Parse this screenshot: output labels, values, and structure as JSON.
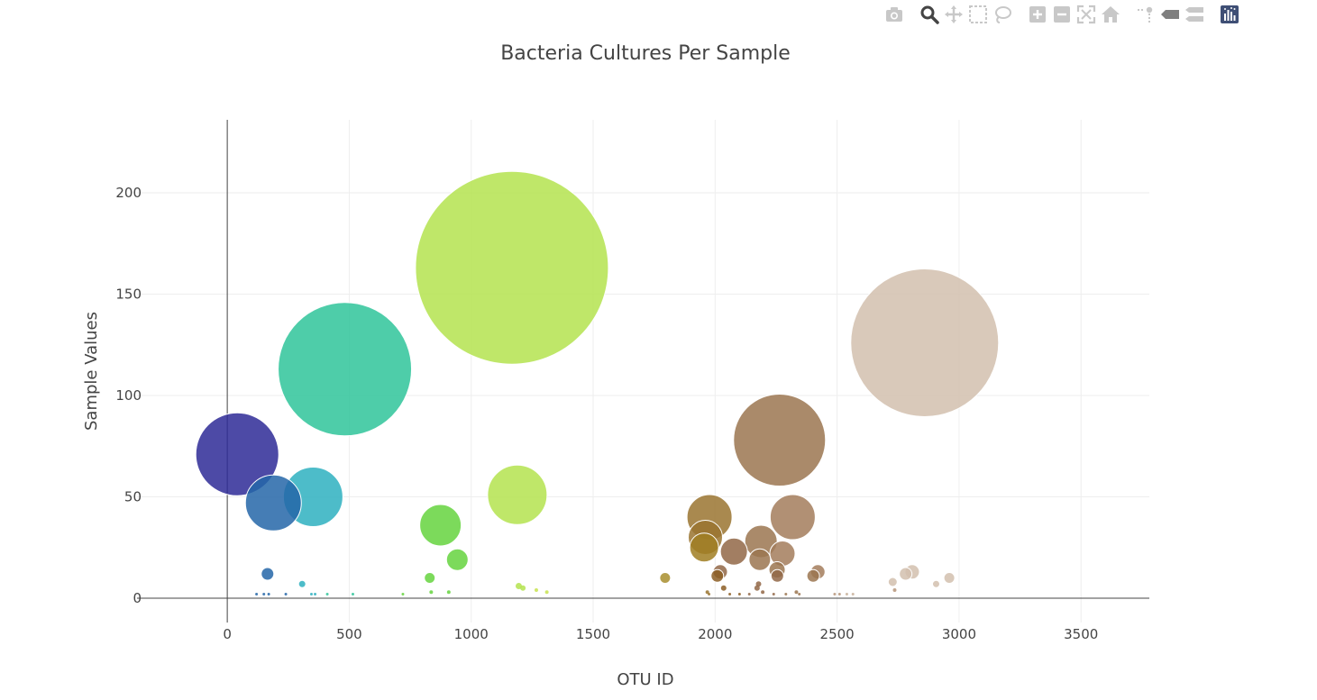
{
  "toolbar": {
    "buttons": [
      "camera-icon",
      "zoom-icon",
      "pan-icon",
      "box-select-icon",
      "lasso-icon",
      "zoom-in-icon",
      "zoom-out-icon",
      "autoscale-icon",
      "reset-axes-icon",
      "spike-lines-icon",
      "hover-closest-icon",
      "hover-compare-icon",
      "plotly-logo-icon"
    ]
  },
  "colors": {
    "grid": "#eeeeee",
    "zeroline": "#444444",
    "title": "#444444",
    "bubble_outline": "#ffffff"
  },
  "chart_data": {
    "type": "scatter",
    "title": "Bacteria Cultures Per Sample",
    "xlabel": "OTU ID",
    "ylabel": "Sample Values",
    "xlim": [
      -370,
      3780
    ],
    "ylim": [
      -12,
      236
    ],
    "xticks": [
      0,
      500,
      1000,
      1500,
      2000,
      2500,
      3000,
      3500
    ],
    "yticks": [
      0,
      50,
      100,
      150,
      200
    ],
    "grid": true,
    "legend": "none",
    "points": [
      {
        "x": 41,
        "y": 71,
        "r": 46,
        "color": "#2e2a96"
      },
      {
        "x": 189,
        "y": 47,
        "r": 31,
        "color": "#2566a8"
      },
      {
        "x": 352,
        "y": 50,
        "r": 33,
        "color": "#2eb0c0"
      },
      {
        "x": 482,
        "y": 113,
        "r": 74,
        "color": "#2fc49a"
      },
      {
        "x": 1167,
        "y": 163,
        "r": 107,
        "color": "#b4e34f"
      },
      {
        "x": 1189,
        "y": 51,
        "r": 33,
        "color": "#b4e34f"
      },
      {
        "x": 874,
        "y": 36,
        "r": 23,
        "color": "#65d43e"
      },
      {
        "x": 943,
        "y": 19,
        "r": 12,
        "color": "#65d43e"
      },
      {
        "x": 830,
        "y": 10,
        "r": 6,
        "color": "#65d43e"
      },
      {
        "x": 165,
        "y": 12,
        "r": 7,
        "color": "#2566a8"
      },
      {
        "x": 307,
        "y": 7,
        "r": 4,
        "color": "#2eb0c0"
      },
      {
        "x": 1795,
        "y": 10,
        "r": 6,
        "color": "#a88e2e"
      },
      {
        "x": 1977,
        "y": 40,
        "r": 25,
        "color": "#9a7430"
      },
      {
        "x": 1960,
        "y": 30,
        "r": 19,
        "color": "#9a7430"
      },
      {
        "x": 1955,
        "y": 25,
        "r": 16,
        "color": "#a07e22"
      },
      {
        "x": 2264,
        "y": 78,
        "r": 51,
        "color": "#9b7550"
      },
      {
        "x": 2318,
        "y": 40,
        "r": 25,
        "color": "#a37d5c"
      },
      {
        "x": 2188,
        "y": 28,
        "r": 18,
        "color": "#9b7550"
      },
      {
        "x": 2077,
        "y": 23,
        "r": 15,
        "color": "#926746"
      },
      {
        "x": 2276,
        "y": 22,
        "r": 14,
        "color": "#a37d5c"
      },
      {
        "x": 2183,
        "y": 19,
        "r": 12,
        "color": "#9b7550"
      },
      {
        "x": 2254,
        "y": 14,
        "r": 9,
        "color": "#9b7550"
      },
      {
        "x": 2255,
        "y": 11,
        "r": 7,
        "color": "#926746"
      },
      {
        "x": 2021,
        "y": 13,
        "r": 8,
        "color": "#926746"
      },
      {
        "x": 2009,
        "y": 11,
        "r": 7,
        "color": "#8c5e24"
      },
      {
        "x": 2421,
        "y": 13,
        "r": 8,
        "color": "#a37d5c"
      },
      {
        "x": 2402,
        "y": 11,
        "r": 7,
        "color": "#9b7550"
      },
      {
        "x": 2035,
        "y": 5,
        "r": 3,
        "color": "#8c5e24"
      },
      {
        "x": 2178,
        "y": 7,
        "r": 3,
        "color": "#926746"
      },
      {
        "x": 2172,
        "y": 5,
        "r": 3,
        "color": "#926746"
      },
      {
        "x": 2859,
        "y": 126,
        "r": 82,
        "color": "#d2bfae"
      },
      {
        "x": 2808,
        "y": 13,
        "r": 8,
        "color": "#d2bfae"
      },
      {
        "x": 2781,
        "y": 12,
        "r": 7,
        "color": "#d2bfae"
      },
      {
        "x": 2960,
        "y": 10,
        "r": 6,
        "color": "#d2bfae"
      },
      {
        "x": 2728,
        "y": 8,
        "r": 5,
        "color": "#d2bfae"
      },
      {
        "x": 2906,
        "y": 7,
        "r": 4,
        "color": "#d2bfae"
      },
      {
        "x": 2736,
        "y": 4,
        "r": 2,
        "color": "#b6957a"
      },
      {
        "x": 1195,
        "y": 6,
        "r": 4,
        "color": "#b4e34f"
      },
      {
        "x": 1212,
        "y": 5,
        "r": 3,
        "color": "#b4e34f"
      },
      {
        "x": 1267,
        "y": 4,
        "r": 2,
        "color": "#c8e34f"
      },
      {
        "x": 1310,
        "y": 3,
        "r": 2,
        "color": "#c8e34f"
      },
      {
        "x": 836,
        "y": 3,
        "r": 2,
        "color": "#65d43e"
      },
      {
        "x": 908,
        "y": 3,
        "r": 2,
        "color": "#65d43e"
      },
      {
        "x": 1968,
        "y": 3,
        "r": 2,
        "color": "#9a7430"
      },
      {
        "x": 2195,
        "y": 3,
        "r": 2,
        "color": "#926746"
      },
      {
        "x": 2333,
        "y": 3,
        "r": 2,
        "color": "#9b7550"
      },
      {
        "x": 120,
        "y": 2,
        "r": 1.5,
        "color": "#2566a8"
      },
      {
        "x": 150,
        "y": 2,
        "r": 1.5,
        "color": "#2566a8"
      },
      {
        "x": 170,
        "y": 2,
        "r": 1.5,
        "color": "#2566a8"
      },
      {
        "x": 240,
        "y": 2,
        "r": 1.5,
        "color": "#2566a8"
      },
      {
        "x": 345,
        "y": 2,
        "r": 1.5,
        "color": "#2eb0c0"
      },
      {
        "x": 360,
        "y": 2,
        "r": 1.5,
        "color": "#2eb0c0"
      },
      {
        "x": 410,
        "y": 2,
        "r": 1.5,
        "color": "#2fc49a"
      },
      {
        "x": 515,
        "y": 2,
        "r": 1.5,
        "color": "#2fc49a"
      },
      {
        "x": 720,
        "y": 2,
        "r": 1.5,
        "color": "#65d43e"
      },
      {
        "x": 1975,
        "y": 2,
        "r": 1.5,
        "color": "#9a7430"
      },
      {
        "x": 2060,
        "y": 2,
        "r": 1.5,
        "color": "#8c5e24"
      },
      {
        "x": 2100,
        "y": 2,
        "r": 1.5,
        "color": "#8c5e24"
      },
      {
        "x": 2140,
        "y": 2,
        "r": 1.5,
        "color": "#926746"
      },
      {
        "x": 2240,
        "y": 2,
        "r": 1.5,
        "color": "#926746"
      },
      {
        "x": 2290,
        "y": 2,
        "r": 1.5,
        "color": "#9b7550"
      },
      {
        "x": 2345,
        "y": 2,
        "r": 1.5,
        "color": "#9b7550"
      },
      {
        "x": 2490,
        "y": 2,
        "r": 1.5,
        "color": "#b6957a"
      },
      {
        "x": 2510,
        "y": 2,
        "r": 1.5,
        "color": "#b6957a"
      },
      {
        "x": 2540,
        "y": 2,
        "r": 1.5,
        "color": "#c8b09a"
      },
      {
        "x": 2565,
        "y": 2,
        "r": 1.5,
        "color": "#c8b09a"
      }
    ]
  }
}
